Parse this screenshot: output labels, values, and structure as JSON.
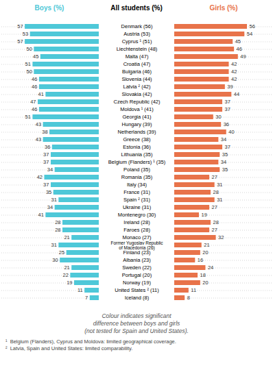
{
  "chart_data": {
    "type": "bar",
    "orientation": "horizontal",
    "ylabel": "All students (%)",
    "categories": [
      "Denmark (56)",
      "Austria (53)",
      "Cyprus ¹ (51)",
      "Liechtenstein (48)",
      "Malta (47)",
      "Croatia (47)",
      "Bulgaria (46)",
      "Slovenia (44)",
      "Latvia ² (42)",
      "Slovakia (42)",
      "Czech Republic (42)",
      "Moldova ¹ (41)",
      "Georgia (41)",
      "Hungary (39)",
      "Netherlands (39)",
      "Greece (38)",
      "Estonia (36)",
      "Lithuania (35)",
      "Belgium (Flanders) ¹ (35)",
      "Poland (35)",
      "Romania (35)",
      "Italy (34)",
      "France (31)",
      "Spain ² (31)",
      "Ukraine (31)",
      "Montenegro (30)",
      "Ireland (28)",
      "Faroes (28)",
      "Monaco (27)",
      "Former Yugoslav Republic\nof Macedonia (26)",
      "Finland (23)",
      "Albania (23)",
      "Sweden (22)",
      "Portugal (20)",
      "Norway (19)",
      "United States ² (11)",
      "Iceland (8)"
    ],
    "series": [
      {
        "name": "Boys (%)",
        "color": "#4ec8d8",
        "values": [
          57,
          53,
          57,
          50,
          45,
          51,
          50,
          46,
          46,
          41,
          47,
          46,
          51,
          43,
          38,
          43,
          36,
          37,
          37,
          34,
          42,
          37,
          35,
          31,
          34,
          41,
          28,
          28,
          21,
          31,
          25,
          30,
          21,
          22,
          19,
          11,
          7
        ]
      },
      {
        "name": "Girls (%)",
        "color": "#e8734a",
        "values": [
          56,
          54,
          45,
          46,
          49,
          42,
          42,
          42,
          39,
          44,
          37,
          37,
          30,
          36,
          40,
          34,
          37,
          35,
          34,
          35,
          27,
          31,
          28,
          31,
          27,
          19,
          28,
          27,
          32,
          21,
          20,
          16,
          24,
          18,
          20,
          11,
          8
        ]
      }
    ],
    "xlim": [
      0,
      75
    ],
    "tick_labels": false,
    "grid": true,
    "data_labels": true,
    "annotations": [
      "Colour indicates significant",
      "difference between boys and girls",
      "(not tested for Spain and United States).",
      "¹  Belgium (Flanders), Cyprus and Moldova: limited geographical coverage.",
      "²  Latvia, Spain and United States: limited comparability."
    ]
  }
}
